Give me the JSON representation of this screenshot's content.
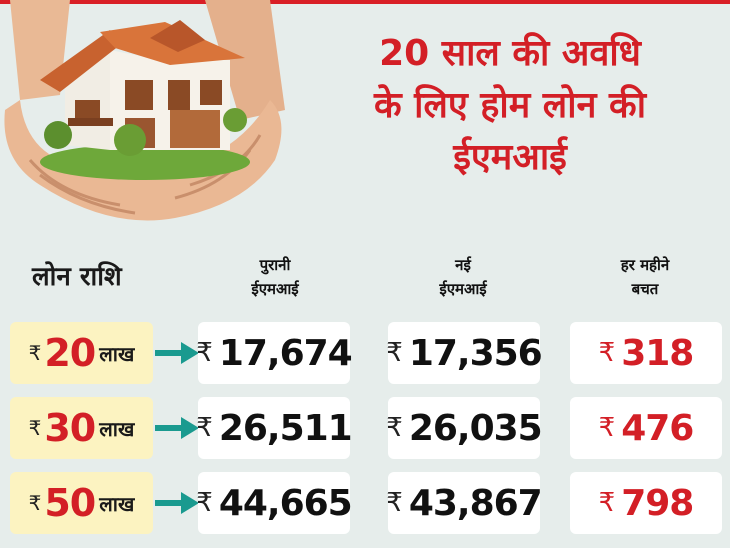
{
  "title_lines": [
    "20 साल की अवधि",
    "के लिए होम लोन की",
    "ईएमआई"
  ],
  "header": {
    "loan_label": "लोन राशि",
    "old_emi": [
      "पुरानी",
      "ईएमआई"
    ],
    "new_emi": [
      "नई",
      "ईएमआई"
    ],
    "saving": [
      "हर महीने",
      "बचत"
    ]
  },
  "currency_symbol": "₹",
  "rows": [
    {
      "amount": "20",
      "unit": "लाख",
      "old_emi": "17,674",
      "new_emi": "17,356",
      "saving": "318"
    },
    {
      "amount": "30",
      "unit": "लाख",
      "old_emi": "26,511",
      "new_emi": "26,035",
      "saving": "476"
    },
    {
      "amount": "50",
      "unit": "लाख",
      "old_emi": "44,665",
      "new_emi": "43,867",
      "saving": "798"
    }
  ],
  "colors": {
    "accent_red": "#d31f26",
    "arrow_teal": "#1a9a8f",
    "amount_bg": "#fcf3c1",
    "page_bg": "#e6edeb"
  },
  "icons": {
    "illustration": "hands-holding-house-icon",
    "arrow": "arrow-right-icon"
  }
}
